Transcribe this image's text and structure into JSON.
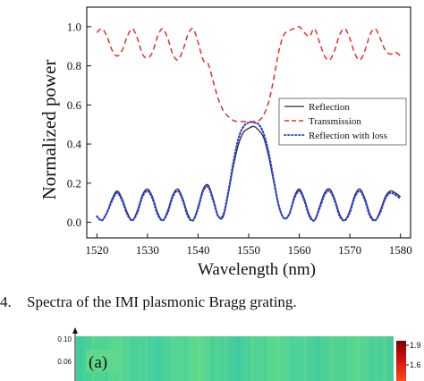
{
  "chart_data": {
    "type": "line",
    "xlabel": "Wavelength (nm)",
    "ylabel": "Normalized power",
    "xlim": [
      1518,
      1582
    ],
    "ylim": [
      -0.08,
      1.1
    ],
    "xticks": [
      "1520",
      "1530",
      "1540",
      "1550",
      "1560",
      "1570",
      "1580"
    ],
    "yticks": [
      "0.0",
      "0.2",
      "0.4",
      "0.6",
      "0.8",
      "1.0"
    ],
    "grid": false,
    "legend_position": "right",
    "series": [
      {
        "name": "Reflection",
        "style": "solid",
        "color": "#2a2a2a",
        "x": [
          1520,
          1521,
          1522,
          1523,
          1524,
          1525,
          1526,
          1527,
          1528,
          1529,
          1530,
          1531,
          1532,
          1533,
          1534,
          1535,
          1536,
          1537,
          1538,
          1539,
          1540,
          1541,
          1542,
          1543,
          1544,
          1545,
          1546,
          1547,
          1548,
          1549,
          1550,
          1551,
          1552,
          1553,
          1554,
          1555,
          1556,
          1557,
          1558,
          1559,
          1560,
          1561,
          1562,
          1563,
          1564,
          1565,
          1566,
          1567,
          1568,
          1569,
          1570,
          1571,
          1572,
          1573,
          1574,
          1575,
          1576,
          1577,
          1578,
          1579,
          1580
        ],
        "y": [
          0.03,
          0.01,
          0.05,
          0.12,
          0.16,
          0.12,
          0.05,
          0.01,
          0.06,
          0.14,
          0.17,
          0.13,
          0.05,
          0.01,
          0.06,
          0.14,
          0.17,
          0.12,
          0.04,
          0.01,
          0.08,
          0.17,
          0.19,
          0.12,
          0.03,
          0.03,
          0.15,
          0.29,
          0.4,
          0.46,
          0.48,
          0.49,
          0.47,
          0.43,
          0.33,
          0.2,
          0.08,
          0.02,
          0.04,
          0.13,
          0.17,
          0.12,
          0.04,
          0.01,
          0.08,
          0.15,
          0.17,
          0.12,
          0.04,
          0.01,
          0.06,
          0.14,
          0.17,
          0.12,
          0.04,
          0.01,
          0.06,
          0.13,
          0.16,
          0.15,
          0.13
        ]
      },
      {
        "name": "Transmission",
        "style": "dashed",
        "color": "#e0302a",
        "x": [
          1520,
          1521,
          1522,
          1523,
          1524,
          1525,
          1526,
          1527,
          1528,
          1529,
          1530,
          1531,
          1532,
          1533,
          1534,
          1535,
          1536,
          1537,
          1538,
          1539,
          1540,
          1541,
          1542,
          1543,
          1544,
          1545,
          1546,
          1547,
          1548,
          1549,
          1550,
          1551,
          1552,
          1553,
          1554,
          1555,
          1556,
          1557,
          1558,
          1559,
          1560,
          1561,
          1562,
          1563,
          1564,
          1565,
          1566,
          1567,
          1568,
          1569,
          1570,
          1571,
          1572,
          1573,
          1574,
          1575,
          1576,
          1577,
          1578,
          1579,
          1580
        ],
        "y": [
          0.97,
          0.99,
          0.95,
          0.88,
          0.85,
          0.88,
          0.95,
          0.99,
          0.94,
          0.86,
          0.84,
          0.87,
          0.95,
          0.99,
          0.94,
          0.86,
          0.83,
          0.88,
          0.96,
          0.99,
          0.92,
          0.83,
          0.81,
          0.72,
          0.63,
          0.57,
          0.54,
          0.52,
          0.515,
          0.515,
          0.515,
          0.515,
          0.52,
          0.55,
          0.62,
          0.74,
          0.88,
          0.96,
          0.98,
          0.99,
          1.0,
          0.97,
          0.95,
          0.99,
          0.92,
          0.85,
          0.83,
          0.88,
          0.96,
          0.99,
          0.94,
          0.86,
          0.83,
          0.88,
          0.96,
          0.99,
          0.94,
          0.88,
          0.86,
          0.87,
          0.85
        ]
      },
      {
        "name": "Reflection with loss",
        "style": "dotted",
        "color": "#2b3fd6",
        "x": [
          1520,
          1521,
          1522,
          1523,
          1524,
          1525,
          1526,
          1527,
          1528,
          1529,
          1530,
          1531,
          1532,
          1533,
          1534,
          1535,
          1536,
          1537,
          1538,
          1539,
          1540,
          1541,
          1542,
          1543,
          1544,
          1545,
          1546,
          1547,
          1548,
          1549,
          1550,
          1551,
          1552,
          1553,
          1554,
          1555,
          1556,
          1557,
          1558,
          1559,
          1560,
          1561,
          1562,
          1563,
          1564,
          1565,
          1566,
          1567,
          1568,
          1569,
          1570,
          1571,
          1572,
          1573,
          1574,
          1575,
          1576,
          1577,
          1578,
          1579,
          1580
        ],
        "y": [
          0.03,
          0.01,
          0.05,
          0.11,
          0.15,
          0.11,
          0.04,
          0.01,
          0.05,
          0.13,
          0.16,
          0.12,
          0.04,
          0.01,
          0.05,
          0.13,
          0.16,
          0.11,
          0.03,
          0.01,
          0.07,
          0.16,
          0.18,
          0.11,
          0.03,
          0.04,
          0.16,
          0.31,
          0.43,
          0.49,
          0.51,
          0.51,
          0.5,
          0.45,
          0.35,
          0.21,
          0.08,
          0.02,
          0.04,
          0.12,
          0.16,
          0.11,
          0.03,
          0.01,
          0.07,
          0.14,
          0.16,
          0.11,
          0.03,
          0.01,
          0.05,
          0.13,
          0.16,
          0.11,
          0.03,
          0.01,
          0.05,
          0.12,
          0.15,
          0.14,
          0.12
        ]
      }
    ]
  },
  "caption": {
    "number": "4.",
    "text": "Spectra of the IMI plasmonic Bragg grating."
  },
  "panel": {
    "label": "(a)",
    "y_ticks": [
      "0.10",
      "0.06"
    ],
    "colorbar_ticks": [
      "1.9",
      "1.6"
    ]
  }
}
